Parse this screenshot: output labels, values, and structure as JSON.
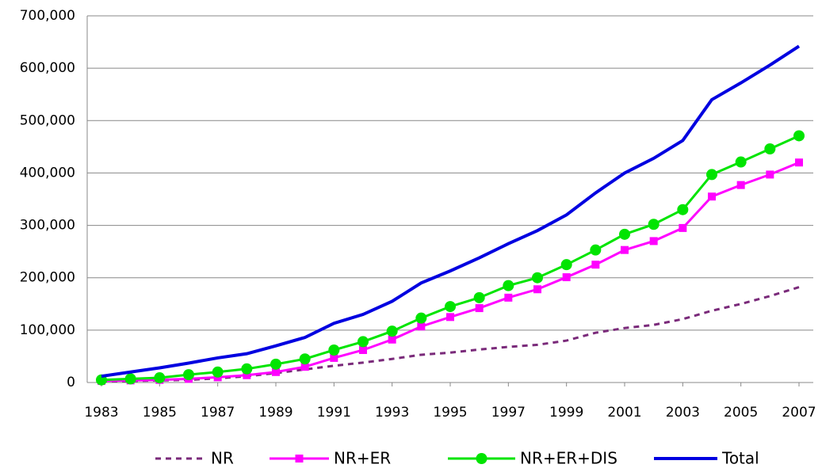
{
  "chart_data": {
    "type": "line",
    "x": [
      1983,
      1984,
      1985,
      1986,
      1987,
      1988,
      1989,
      1990,
      1991,
      1992,
      1993,
      1994,
      1995,
      1996,
      1997,
      1998,
      1999,
      2000,
      2001,
      2002,
      2003,
      2004,
      2005,
      2006,
      2007
    ],
    "xlim": [
      1983,
      2007
    ],
    "xticks": [
      1983,
      1985,
      1987,
      1989,
      1991,
      1993,
      1995,
      1997,
      1999,
      2001,
      2003,
      2005,
      2007
    ],
    "ylim": [
      0,
      700000
    ],
    "yticks": [
      0,
      {
        "value": 100000,
        "label": "100,000"
      },
      {
        "value": 200000,
        "label": "200,000"
      },
      {
        "value": 300000,
        "label": "300,000"
      },
      {
        "value": 400000,
        "label": "400,000"
      },
      {
        "value": 500000,
        "label": "500,000"
      },
      {
        "value": 600000,
        "label": "600,000"
      },
      {
        "value": 700000,
        "label": "700,000"
      }
    ],
    "grid": true,
    "legend": "bottom",
    "series": [
      {
        "name": "NR",
        "color": "#7a2a7a",
        "dash": true,
        "marker": null,
        "values": [
          2000,
          3000,
          4000,
          5000,
          8000,
          12000,
          18000,
          25000,
          32000,
          38000,
          45000,
          53000,
          57000,
          63000,
          68000,
          72000,
          80000,
          95000,
          104000,
          110000,
          121000,
          137000,
          150000,
          165000,
          182000
        ]
      },
      {
        "name": "NR+ER",
        "color": "#ff00ff",
        "dash": false,
        "marker": "square",
        "values": [
          3000,
          4000,
          5000,
          7000,
          10000,
          14000,
          20000,
          30000,
          47000,
          62000,
          82000,
          107000,
          125000,
          142000,
          162000,
          178000,
          201000,
          225000,
          253000,
          270000,
          295000,
          355000,
          377000,
          397000,
          420000
        ]
      },
      {
        "name": "NR+ER+DIS",
        "color": "#00e400",
        "dash": false,
        "marker": "circle",
        "values": [
          5000,
          7000,
          9000,
          15000,
          20000,
          26000,
          35000,
          45000,
          62000,
          78000,
          98000,
          123000,
          145000,
          162000,
          185000,
          200000,
          225000,
          253000,
          283000,
          302000,
          330000,
          397000,
          421000,
          446000,
          471000
        ]
      },
      {
        "name": "Total",
        "color": "#0000e0",
        "dash": false,
        "marker": null,
        "values": [
          12000,
          20000,
          28000,
          37000,
          47000,
          55000,
          70000,
          86000,
          113000,
          130000,
          155000,
          190000,
          213000,
          238000,
          265000,
          290000,
          320000,
          362000,
          400000,
          428000,
          462000,
          540000,
          572000,
          606000,
          642000
        ]
      }
    ]
  }
}
